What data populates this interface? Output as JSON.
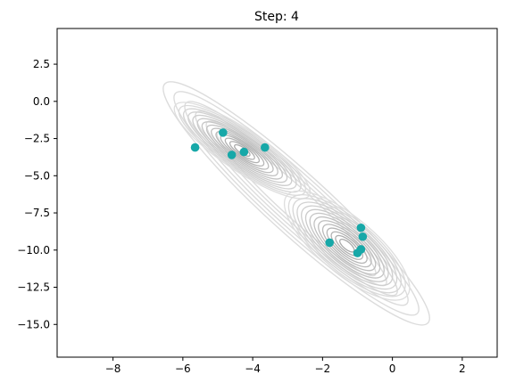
{
  "chart_data": {
    "type": "scatter",
    "title": "Step: 4",
    "xlabel": "",
    "ylabel": "",
    "xlim": [
      -9.6,
      3.0
    ],
    "ylim": [
      -17.2,
      4.9
    ],
    "xticks": [
      -8,
      -6,
      -4,
      -2,
      0,
      2
    ],
    "yticks": [
      2.5,
      0.0,
      -2.5,
      -5.0,
      -7.5,
      -10.0,
      -12.5,
      -15.0
    ],
    "grid": false,
    "background": "density contour (light gray) of a bimodal elongated distribution",
    "contour_color": "#bdbdbd",
    "point_color": "#17a8a8",
    "points": [
      {
        "x": -4.85,
        "y": -2.1
      },
      {
        "x": -3.65,
        "y": -3.1
      },
      {
        "x": -5.65,
        "y": -3.1
      },
      {
        "x": -4.25,
        "y": -3.4
      },
      {
        "x": -4.6,
        "y": -3.6
      },
      {
        "x": -0.9,
        "y": -8.5
      },
      {
        "x": -0.85,
        "y": -9.1
      },
      {
        "x": -1.8,
        "y": -9.5
      },
      {
        "x": -0.9,
        "y": -9.95
      },
      {
        "x": -1.0,
        "y": -10.2
      }
    ],
    "modes": [
      {
        "cx": -4.3,
        "cy": -3.3,
        "rx": 3.1,
        "ry": 0.75,
        "angle": 34
      },
      {
        "cx": -1.3,
        "cy": -9.7,
        "rx": 3.0,
        "ry": 1.05,
        "angle": 40
      }
    ]
  }
}
